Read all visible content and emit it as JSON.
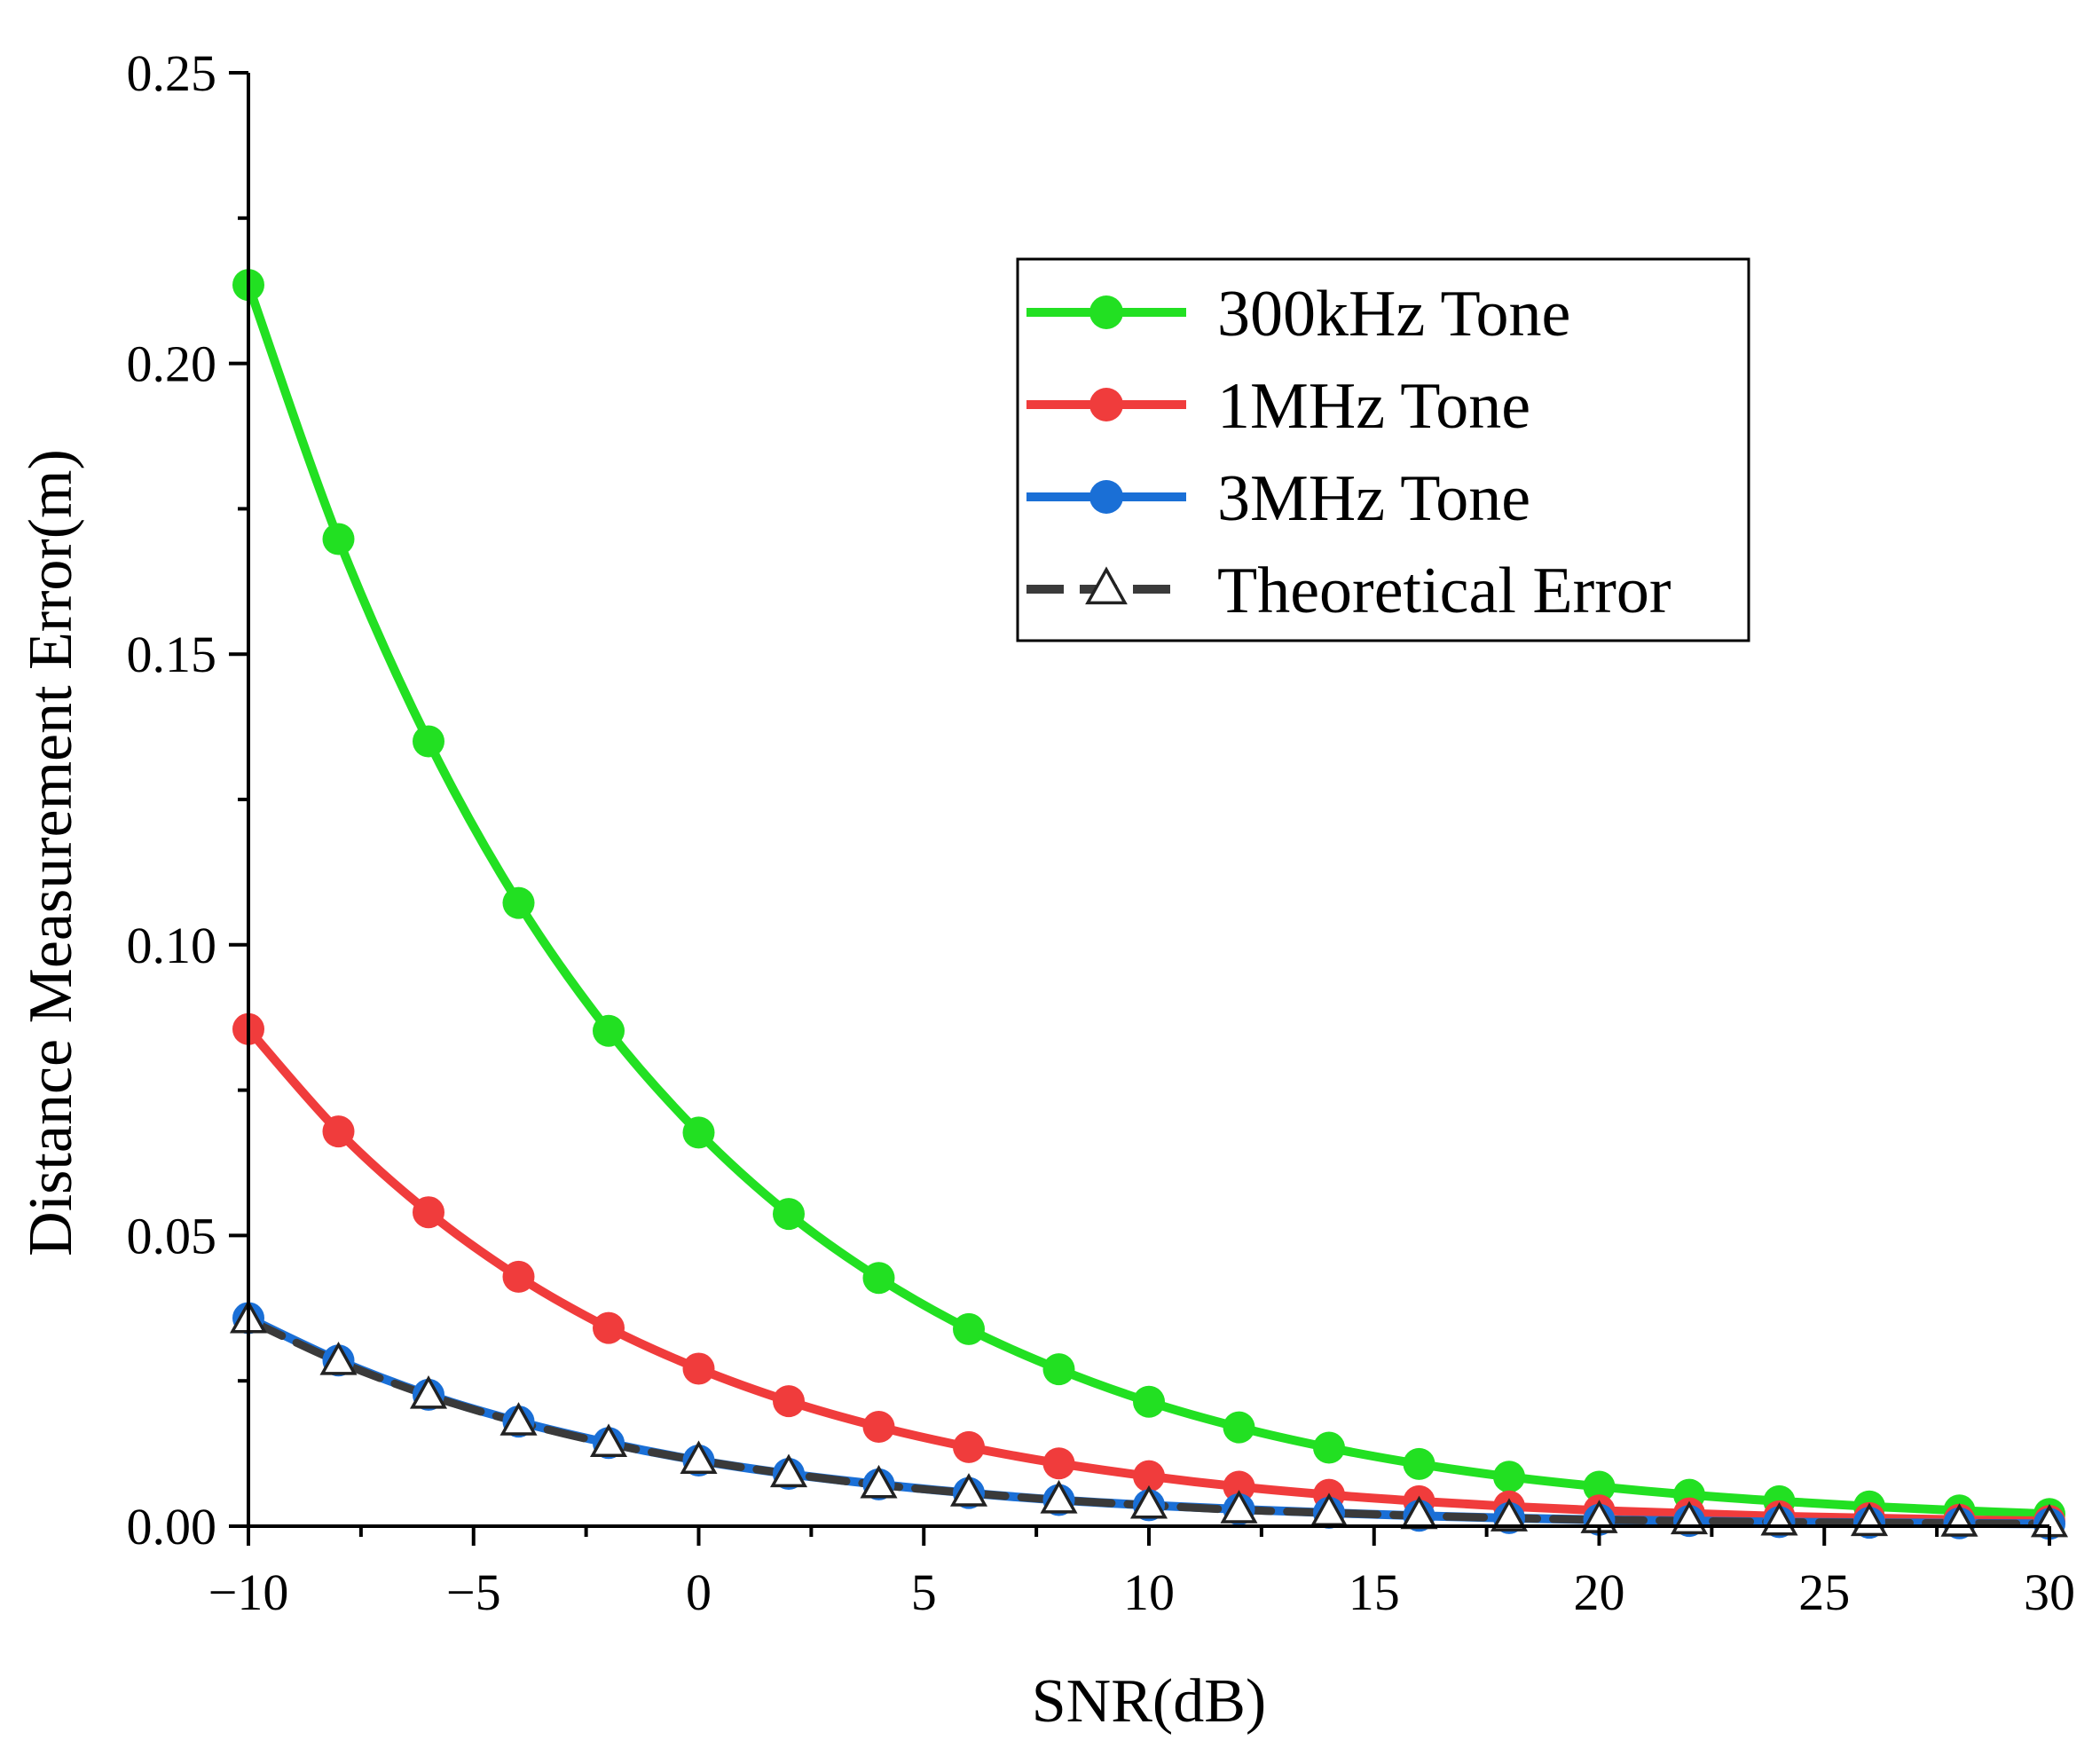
{
  "chart_data": {
    "type": "line",
    "title": "",
    "xlabel": "SNR(dB)",
    "ylabel": "Distance Measurement Error(m)",
    "xlim": [
      -10,
      30
    ],
    "ylim": [
      0,
      0.25
    ],
    "xticks": [
      -10,
      -5,
      0,
      5,
      10,
      15,
      20,
      25,
      30
    ],
    "xtick_labels": [
      "−10",
      "−5",
      "0",
      "5",
      "10",
      "15",
      "20",
      "25",
      "30"
    ],
    "yticks": [
      0,
      0.05,
      0.1,
      0.15,
      0.2,
      0.25
    ],
    "ytick_labels": [
      "0.00",
      "0.05",
      "0.10",
      "0.15",
      "0.20",
      "0.25"
    ],
    "grid": false,
    "legend_position": "upper-right",
    "x": [
      -10,
      -8,
      -6,
      -4,
      -2,
      0,
      2,
      4,
      6,
      8,
      10,
      12,
      14,
      16,
      18,
      20,
      22,
      24,
      26,
      28,
      30
    ],
    "series": [
      {
        "name": "300kHz Tone",
        "color": "#22e022",
        "marker": "circle",
        "line": "solid",
        "values": [
          0.2135,
          0.1698,
          0.135,
          0.1072,
          0.0852,
          0.0677,
          0.0537,
          0.0427,
          0.0339,
          0.027,
          0.0214,
          0.017,
          0.0135,
          0.0107,
          0.0085,
          0.0068,
          0.0054,
          0.0043,
          0.0034,
          0.0027,
          0.0021
        ]
      },
      {
        "name": "1MHz Tone",
        "color": "#f03c3c",
        "marker": "circle",
        "line": "solid",
        "values": [
          0.0855,
          0.0679,
          0.054,
          0.0429,
          0.0341,
          0.0271,
          0.0215,
          0.0171,
          0.0136,
          0.0108,
          0.0086,
          0.0068,
          0.0054,
          0.0043,
          0.0034,
          0.0027,
          0.0022,
          0.0017,
          0.0014,
          0.0011,
          0.0009
        ]
      },
      {
        "name": "3MHz Tone",
        "color": "#1a6fd6",
        "marker": "circle",
        "line": "solid",
        "values": [
          0.0358,
          0.0285,
          0.0226,
          0.018,
          0.0143,
          0.0113,
          0.009,
          0.0072,
          0.0057,
          0.0045,
          0.0036,
          0.0029,
          0.0023,
          0.0018,
          0.0014,
          0.0011,
          0.0009,
          0.0007,
          0.0006,
          0.0005,
          0.0004
        ]
      },
      {
        "name": "Theoretical Error",
        "color": "#3a3a3a",
        "marker": "triangle",
        "line": "dashed",
        "values": [
          0.0355,
          0.0283,
          0.0225,
          0.0179,
          0.0142,
          0.0113,
          0.009,
          0.0071,
          0.0057,
          0.0045,
          0.0036,
          0.0028,
          0.0023,
          0.0018,
          0.0014,
          0.0011,
          0.0009,
          0.0007,
          0.0006,
          0.0005,
          0.0004
        ]
      }
    ]
  }
}
